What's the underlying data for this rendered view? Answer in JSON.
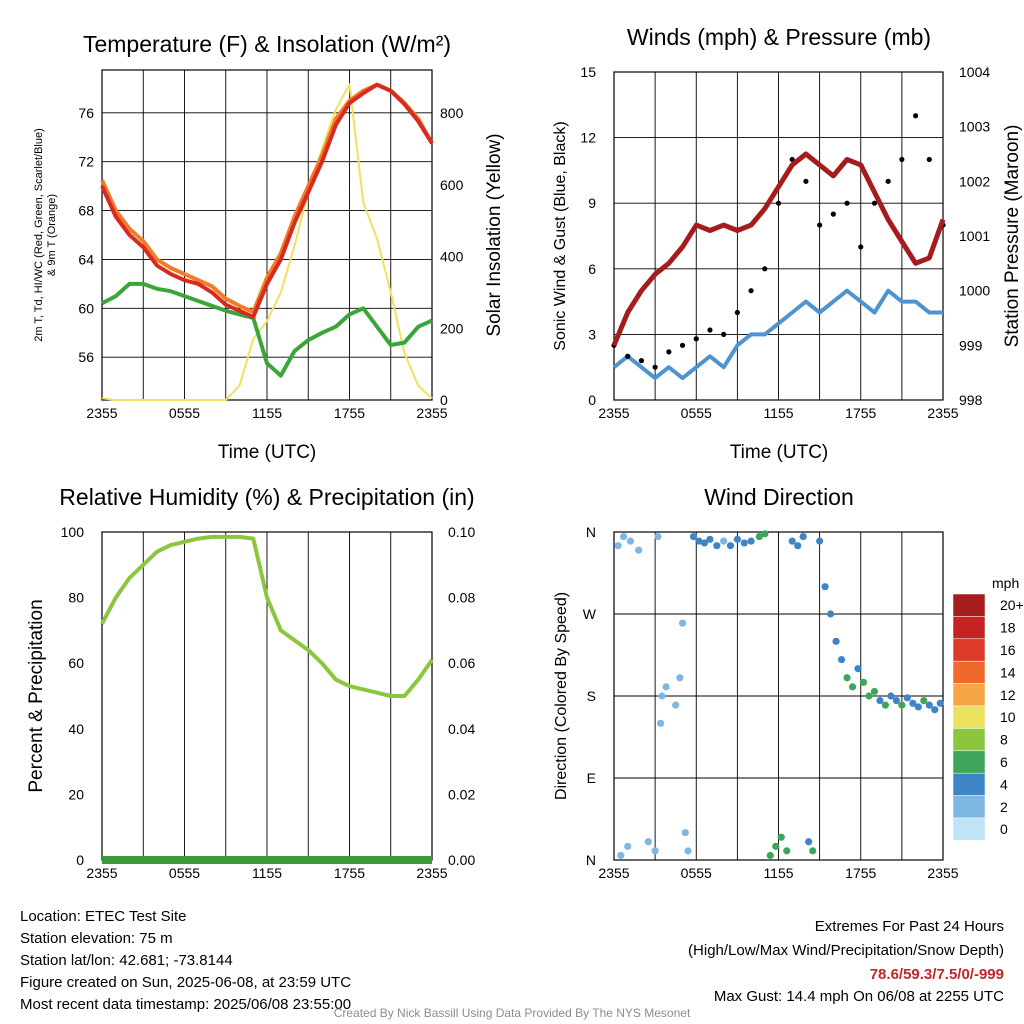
{
  "colors": {
    "temp": "#d62b1e",
    "heat_index": "#2a8a2a",
    "temp9m": "#f07c28",
    "dewpoint": "#3aa63a",
    "insolation": "#f2e060",
    "wind": "#4d95d0",
    "gust": "#000000",
    "pressure": "#a51c1c",
    "rh": "#8cc63f",
    "precip": "#3a9a3a"
  },
  "chart_data": [
    {
      "type": "line",
      "title": "Temperature (F) & Insolation (W/m²)",
      "xlabel": "Time (UTC)",
      "ylabel": "2m T, Td, HI/WC (Red, Green, Scarlet/Blue) & 9m T (Orange)",
      "ylabel_line1": "2m T, Td, HI/WC (Red, Green, Scarlet/Blue)",
      "ylabel_line2": "& 9m T (Orange)",
      "y2label": "Solar Insolation (Yellow)",
      "x_ticks": [
        "2355",
        "0555",
        "1155",
        "1755",
        "2355"
      ],
      "ylim": [
        52.5,
        79.5
      ],
      "y_ticks": [
        "56",
        "60",
        "64",
        "68",
        "72",
        "76"
      ],
      "y2lim": [
        0,
        920
      ],
      "y2_ticks": [
        "0",
        "200",
        "400",
        "600",
        "800"
      ],
      "x_hours": [
        0,
        1,
        2,
        3,
        4,
        5,
        6,
        7,
        8,
        9,
        10,
        11,
        12,
        13,
        14,
        15,
        16,
        17,
        18,
        19,
        20,
        21,
        22,
        23,
        24
      ],
      "series": [
        {
          "key": "temp9m",
          "values": [
            70.5,
            68.0,
            66.5,
            65.5,
            64.0,
            63.3,
            62.8,
            62.3,
            61.8,
            60.8,
            60.2,
            59.7,
            62.5,
            64.5,
            67.5,
            70.0,
            72.5,
            75.5,
            77.0,
            77.8,
            78.3,
            77.8,
            76.8,
            75.5,
            73.5
          ]
        },
        {
          "key": "temp",
          "values": [
            70.0,
            67.5,
            66.0,
            65.0,
            63.5,
            62.8,
            62.3,
            62.0,
            61.3,
            60.3,
            59.8,
            59.3,
            62.0,
            64.0,
            67.0,
            69.5,
            72.0,
            75.0,
            76.8,
            77.6,
            78.3,
            77.8,
            76.7,
            75.3,
            73.5
          ]
        },
        {
          "key": "dewpoint",
          "values": [
            60.4,
            61.0,
            62.0,
            62.0,
            61.6,
            61.4,
            61.0,
            60.6,
            60.2,
            59.8,
            59.5,
            59.2,
            55.5,
            54.5,
            56.5,
            57.4,
            58.0,
            58.5,
            59.5,
            60.0,
            58.5,
            57.0,
            57.2,
            58.5,
            59.0
          ]
        },
        {
          "key": "insolation",
          "axis": "y2",
          "values": [
            5,
            0,
            0,
            0,
            0,
            0,
            0,
            0,
            0,
            0,
            40,
            170,
            220,
            300,
            430,
            580,
            700,
            810,
            880,
            550,
            450,
            300,
            130,
            40,
            5
          ]
        }
      ]
    },
    {
      "type": "line",
      "title": "Winds (mph) & Pressure (mb)",
      "xlabel": "Time (UTC)",
      "ylabel": "Sonic Wind & Gust (Blue, Black)",
      "y2label": "Station Pressure (Maroon)",
      "x_ticks": [
        "2355",
        "0555",
        "1155",
        "1755",
        "2355"
      ],
      "ylim": [
        0,
        15
      ],
      "y_ticks": [
        "0",
        "3",
        "6",
        "9",
        "12",
        "15"
      ],
      "y2lim": [
        998,
        1004
      ],
      "y2_ticks": [
        "998",
        "999",
        "1000",
        "1001",
        "1002",
        "1003",
        "1004"
      ],
      "x_hours": [
        0,
        1,
        2,
        3,
        4,
        5,
        6,
        7,
        8,
        9,
        10,
        11,
        12,
        13,
        14,
        15,
        16,
        17,
        18,
        19,
        20,
        21,
        22,
        23,
        24
      ],
      "series": [
        {
          "key": "wind",
          "values": [
            1.5,
            2.0,
            1.5,
            1.0,
            1.5,
            1.0,
            1.5,
            2.0,
            1.5,
            2.5,
            3.0,
            3.0,
            3.5,
            4.0,
            4.5,
            4.0,
            4.5,
            5.0,
            4.5,
            4.0,
            5.0,
            4.5,
            4.5,
            4.0,
            4.0
          ]
        },
        {
          "key": "gust",
          "values": [
            2.5,
            2.0,
            1.8,
            1.5,
            2.2,
            2.5,
            2.8,
            3.2,
            3.0,
            4.0,
            5.0,
            6.0,
            9.0,
            11.0,
            10.0,
            8.0,
            8.5,
            9.0,
            7.0,
            9.0,
            10.0,
            11.0,
            13.0,
            11.0,
            8.0
          ]
        },
        {
          "key": "pressure",
          "axis": "y2",
          "values": [
            999.0,
            999.6,
            1000.0,
            1000.3,
            1000.5,
            1000.8,
            1001.2,
            1001.1,
            1001.2,
            1001.1,
            1001.2,
            1001.5,
            1001.9,
            1002.3,
            1002.5,
            1002.3,
            1002.1,
            1002.4,
            1002.3,
            1001.8,
            1001.3,
            1000.9,
            1000.5,
            1000.6,
            1001.3
          ]
        }
      ]
    },
    {
      "type": "line",
      "title": "Relative Humidity (%) & Precipitation (in)",
      "ylabel": "Percent & Precipitation",
      "x_ticks": [
        "2355",
        "0555",
        "1155",
        "1755",
        "2355"
      ],
      "ylim": [
        0,
        100
      ],
      "y_ticks": [
        "0",
        "20",
        "40",
        "60",
        "80",
        "100"
      ],
      "y2lim": [
        0,
        0.1
      ],
      "y2_ticks": [
        "0.00",
        "0.02",
        "0.04",
        "0.06",
        "0.08",
        "0.10"
      ],
      "x_hours": [
        0,
        1,
        2,
        3,
        4,
        5,
        6,
        7,
        8,
        9,
        10,
        11,
        12,
        13,
        14,
        15,
        16,
        17,
        18,
        19,
        20,
        21,
        22,
        23,
        24
      ],
      "series": [
        {
          "key": "rh",
          "values": [
            72,
            80,
            86,
            90,
            94,
            96,
            97,
            98,
            98.5,
            98.5,
            98.5,
            98,
            80,
            70,
            67,
            64,
            60,
            55,
            53,
            52,
            51,
            50,
            50,
            55,
            61
          ]
        },
        {
          "key": "precip",
          "axis": "y2",
          "values": [
            0,
            0,
            0,
            0,
            0,
            0,
            0,
            0,
            0,
            0,
            0,
            0,
            0,
            0,
            0,
            0,
            0,
            0,
            0,
            0,
            0,
            0,
            0,
            0,
            0
          ]
        }
      ]
    },
    {
      "type": "scatter",
      "title": "Wind Direction",
      "ylabel": "Direction (Colored By Speed)",
      "x_ticks": [
        "2355",
        "0555",
        "1155",
        "1755",
        "2355"
      ],
      "y_ticks": [
        "N",
        "E",
        "S",
        "W",
        "N"
      ],
      "ylim": [
        0,
        360
      ],
      "points": [
        {
          "h": 0.3,
          "d": 345,
          "s": 1
        },
        {
          "h": 0.7,
          "d": 355,
          "s": 1
        },
        {
          "h": 1.2,
          "d": 350,
          "s": 1
        },
        {
          "h": 1.8,
          "d": 340,
          "s": 1
        },
        {
          "h": 0.5,
          "d": 5,
          "s": 1
        },
        {
          "h": 1.0,
          "d": 15,
          "s": 1
        },
        {
          "h": 2.5,
          "d": 20,
          "s": 1
        },
        {
          "h": 3.0,
          "d": 10,
          "s": 2
        },
        {
          "h": 3.2,
          "d": 355,
          "s": 2
        },
        {
          "h": 3.5,
          "d": 180,
          "s": 1
        },
        {
          "h": 3.8,
          "d": 190,
          "s": 1
        },
        {
          "h": 3.4,
          "d": 150,
          "s": 1
        },
        {
          "h": 4.5,
          "d": 170,
          "s": 1
        },
        {
          "h": 4.8,
          "d": 200,
          "s": 1
        },
        {
          "h": 5.0,
          "d": 260,
          "s": 1
        },
        {
          "h": 5.2,
          "d": 30,
          "s": 2
        },
        {
          "h": 5.4,
          "d": 10,
          "s": 2
        },
        {
          "h": 5.8,
          "d": 355,
          "s": 3
        },
        {
          "h": 6.2,
          "d": 350,
          "s": 3
        },
        {
          "h": 6.6,
          "d": 348,
          "s": 3
        },
        {
          "h": 7.0,
          "d": 352,
          "s": 3
        },
        {
          "h": 7.5,
          "d": 345,
          "s": 3
        },
        {
          "h": 8.0,
          "d": 350,
          "s": 2
        },
        {
          "h": 8.5,
          "d": 345,
          "s": 3
        },
        {
          "h": 9.0,
          "d": 352,
          "s": 3
        },
        {
          "h": 9.5,
          "d": 348,
          "s": 4
        },
        {
          "h": 10.0,
          "d": 350,
          "s": 4
        },
        {
          "h": 10.6,
          "d": 355,
          "s": 6
        },
        {
          "h": 11.0,
          "d": 358,
          "s": 6
        },
        {
          "h": 11.4,
          "d": 5,
          "s": 5
        },
        {
          "h": 11.8,
          "d": 15,
          "s": 6
        },
        {
          "h": 12.2,
          "d": 25,
          "s": 5
        },
        {
          "h": 12.6,
          "d": 10,
          "s": 6
        },
        {
          "h": 13.0,
          "d": 350,
          "s": 4
        },
        {
          "h": 13.4,
          "d": 345,
          "s": 4
        },
        {
          "h": 13.8,
          "d": 355,
          "s": 3
        },
        {
          "h": 14.2,
          "d": 20,
          "s": 4
        },
        {
          "h": 14.5,
          "d": 10,
          "s": 5
        },
        {
          "h": 15.0,
          "d": 350,
          "s": 4
        },
        {
          "h": 15.4,
          "d": 300,
          "s": 3
        },
        {
          "h": 15.8,
          "d": 270,
          "s": 3
        },
        {
          "h": 16.2,
          "d": 240,
          "s": 3
        },
        {
          "h": 16.6,
          "d": 220,
          "s": 4
        },
        {
          "h": 17.0,
          "d": 200,
          "s": 5
        },
        {
          "h": 17.4,
          "d": 190,
          "s": 5
        },
        {
          "h": 17.8,
          "d": 210,
          "s": 4
        },
        {
          "h": 18.2,
          "d": 195,
          "s": 6
        },
        {
          "h": 18.6,
          "d": 180,
          "s": 5
        },
        {
          "h": 19.0,
          "d": 185,
          "s": 6
        },
        {
          "h": 19.4,
          "d": 175,
          "s": 4
        },
        {
          "h": 19.8,
          "d": 170,
          "s": 5
        },
        {
          "h": 20.2,
          "d": 180,
          "s": 4
        },
        {
          "h": 20.6,
          "d": 175,
          "s": 4
        },
        {
          "h": 21.0,
          "d": 170,
          "s": 5
        },
        {
          "h": 21.4,
          "d": 178,
          "s": 4
        },
        {
          "h": 21.8,
          "d": 172,
          "s": 4
        },
        {
          "h": 22.2,
          "d": 168,
          "s": 4
        },
        {
          "h": 22.6,
          "d": 175,
          "s": 5
        },
        {
          "h": 23.0,
          "d": 170,
          "s": 4
        },
        {
          "h": 23.4,
          "d": 165,
          "s": 3
        },
        {
          "h": 23.8,
          "d": 172,
          "s": 4
        }
      ],
      "legend": {
        "title": "mph",
        "labels": [
          "20+",
          "18",
          "16",
          "14",
          "12",
          "10",
          "8",
          "6",
          "4",
          "2",
          "0"
        ],
        "colors": [
          "#a51c1c",
          "#c42323",
          "#dc3b2a",
          "#ee6a2a",
          "#f6a546",
          "#ebe060",
          "#8cc63f",
          "#3ea55b",
          "#3f85c6",
          "#7fb7e3",
          "#bfe3f7"
        ]
      }
    }
  ],
  "footer": {
    "location": "Location: ETEC Test Site",
    "elevation": "Station elevation: 75 m",
    "latlon": "Station lat/lon: 42.681; -73.8144",
    "created": "Figure created on Sun, 2025-06-08, at 23:59 UTC",
    "recent": "Most recent data timestamp: 2025/06/08 23:55:00",
    "extremes_title": "Extremes For Past 24 Hours",
    "extremes_subtitle": "(High/Low/Max Wind/Precipitation/Snow Depth)",
    "extremes_values": "78.6/59.3/7.5/0/-999",
    "max_gust": "Max Gust: 14.4 mph On 06/08 at 2255 UTC",
    "credit": "Created By Nick Bassill Using Data Provided By The NYS Mesonet"
  }
}
